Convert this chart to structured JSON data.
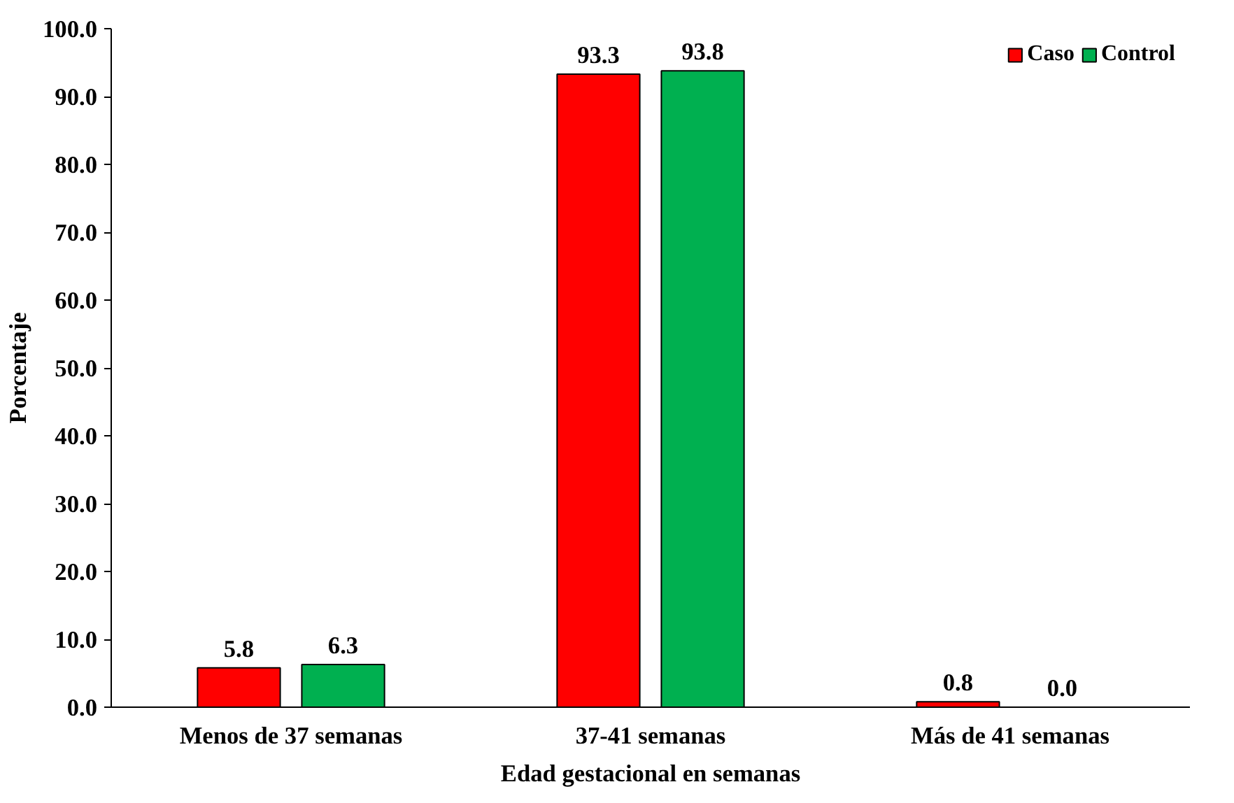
{
  "chart_data": {
    "type": "bar",
    "xlabel": "Edad gestacional en semanas",
    "ylabel": "Porcentaje",
    "categories": [
      "Menos de 37 semanas",
      "37-41 semanas",
      "Más de 41 semanas"
    ],
    "series": [
      {
        "name": "Caso",
        "color": "#ff0000",
        "values": [
          5.8,
          93.3,
          0.8
        ],
        "value_labels": [
          "5.8",
          "93.3",
          "0.8"
        ]
      },
      {
        "name": "Control",
        "color": "#00b050",
        "values": [
          6.3,
          93.8,
          0.0
        ],
        "value_labels": [
          "6.3",
          "93.8",
          "0.0"
        ]
      }
    ],
    "ylim": [
      0,
      100
    ],
    "yticks": [
      {
        "value": 0,
        "label": "0.0"
      },
      {
        "value": 10,
        "label": "10.0"
      },
      {
        "value": 20,
        "label": "20.0"
      },
      {
        "value": 30,
        "label": "30.0"
      },
      {
        "value": 40,
        "label": "40.0"
      },
      {
        "value": 50,
        "label": "50.0"
      },
      {
        "value": 60,
        "label": "60.0"
      },
      {
        "value": 70,
        "label": "70.0"
      },
      {
        "value": 80,
        "label": "80.0"
      },
      {
        "value": 90,
        "label": "90.0"
      },
      {
        "value": 100,
        "label": "100.0"
      }
    ],
    "grid": false,
    "legend": "top right"
  }
}
